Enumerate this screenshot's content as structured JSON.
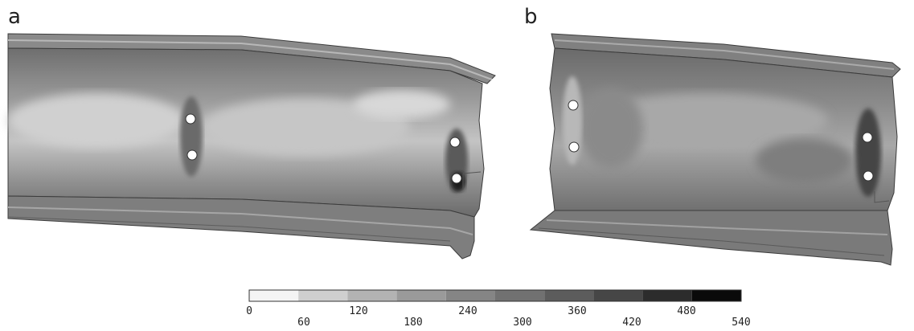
{
  "panels": [
    {
      "id": "a",
      "label": "a"
    },
    {
      "id": "b",
      "label": "b"
    }
  ],
  "colorbar": {
    "ticks": [
      "0",
      "60",
      "120",
      "180",
      "240",
      "300",
      "360",
      "420",
      "480",
      "540"
    ],
    "colors": [
      "#f4f4f4",
      "#cfcfcf",
      "#b3b3b3",
      "#9a9a9a",
      "#858585",
      "#717171",
      "#5c5c5c",
      "#464646",
      "#2c2c2c",
      "#0a0a0a"
    ]
  }
}
